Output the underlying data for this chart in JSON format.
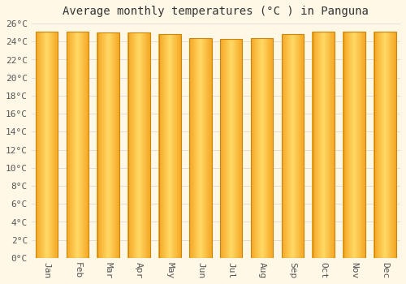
{
  "title": "Average monthly temperatures (°C ) in Panguna",
  "months": [
    "Jan",
    "Feb",
    "Mar",
    "Apr",
    "May",
    "Jun",
    "Jul",
    "Aug",
    "Sep",
    "Oct",
    "Nov",
    "Dec"
  ],
  "values": [
    25.1,
    25.1,
    25.0,
    25.0,
    24.8,
    24.4,
    24.3,
    24.4,
    24.8,
    25.1,
    25.1,
    25.1
  ],
  "bar_color_center": "#FFD966",
  "bar_color_edge": "#F5A623",
  "bar_outline_color": "#C8860A",
  "background_color": "#FFF8E7",
  "grid_color": "#D8D8D8",
  "ylim": [
    0,
    26
  ],
  "ytick_step": 2,
  "title_fontsize": 10,
  "tick_fontsize": 8,
  "tick_font": "monospace"
}
